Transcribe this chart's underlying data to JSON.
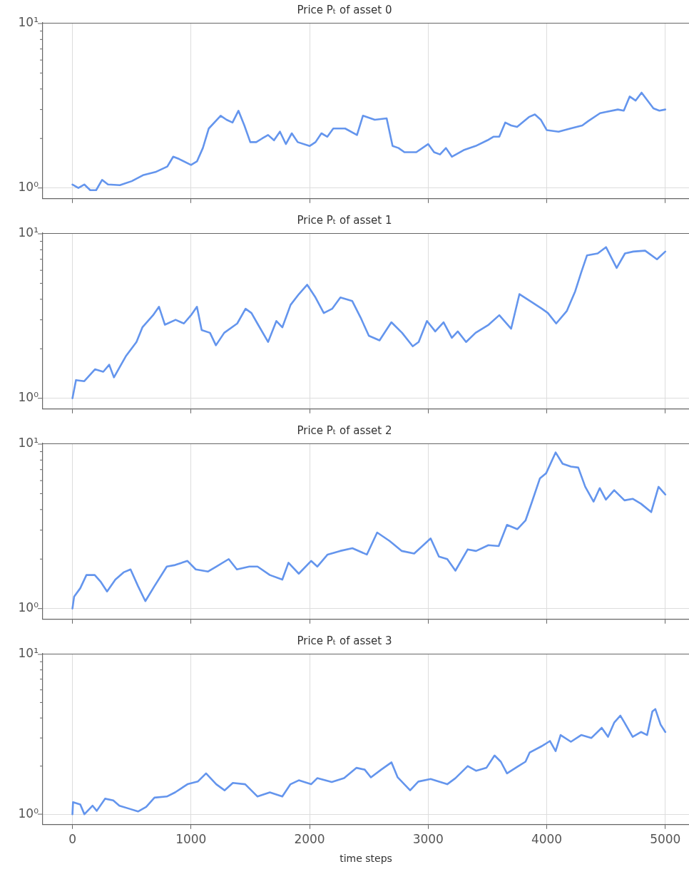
{
  "chart_data": [
    {
      "type": "line",
      "title": "Price Pₜ of asset 0",
      "xlim": [
        -250,
        5200
      ],
      "xticks": [
        0,
        1000,
        2000,
        3000,
        4000,
        5000
      ],
      "ylim": [
        0.86,
        10.1
      ],
      "yticks": [
        {
          "value": 1,
          "label": "10⁰"
        },
        {
          "value": 2,
          "label": null
        },
        {
          "value": 3,
          "label": null
        },
        {
          "value": 4,
          "label": null
        },
        {
          "value": 5,
          "label": null
        },
        {
          "value": 6,
          "label": null
        },
        {
          "value": 7,
          "label": null
        },
        {
          "value": 8,
          "label": null
        },
        {
          "value": 9,
          "label": null
        },
        {
          "value": 10,
          "label": "10¹"
        }
      ],
      "log": "y",
      "grid": true,
      "tick_labels": "y",
      "series": [
        {
          "color": "#6495ed",
          "x": [
            0,
            50,
            100,
            150,
            200,
            250,
            300,
            400,
            500,
            600,
            700,
            800,
            850,
            900,
            1000,
            1050,
            1100,
            1150,
            1250,
            1300,
            1350,
            1400,
            1450,
            1500,
            1550,
            1600,
            1650,
            1700,
            1750,
            1800,
            1850,
            1900,
            2000,
            2050,
            2100,
            2150,
            2200,
            2300,
            2400,
            2450,
            2550,
            2650,
            2700,
            2750,
            2800,
            2900,
            3000,
            3050,
            3100,
            3150,
            3200,
            3300,
            3400,
            3500,
            3550,
            3600,
            3650,
            3700,
            3750,
            3850,
            3900,
            3950,
            4000,
            4100,
            4200,
            4300,
            4350,
            4450,
            4500,
            4600,
            4650,
            4700,
            4750,
            4800,
            4900,
            4950,
            5000
          ],
          "values": [
            1.05,
            1.0,
            1.05,
            0.97,
            0.97,
            1.12,
            1.05,
            1.04,
            1.1,
            1.2,
            1.25,
            1.35,
            1.55,
            1.5,
            1.38,
            1.45,
            1.75,
            2.3,
            2.75,
            2.6,
            2.5,
            2.95,
            2.4,
            1.9,
            1.9,
            2.0,
            2.1,
            1.95,
            2.2,
            1.85,
            2.15,
            1.9,
            1.8,
            1.9,
            2.15,
            2.05,
            2.3,
            2.3,
            2.1,
            2.75,
            2.6,
            2.65,
            1.8,
            1.75,
            1.65,
            1.65,
            1.85,
            1.65,
            1.6,
            1.75,
            1.55,
            1.7,
            1.8,
            1.95,
            2.05,
            2.05,
            2.5,
            2.4,
            2.35,
            2.7,
            2.8,
            2.6,
            2.25,
            2.2,
            2.3,
            2.4,
            2.55,
            2.85,
            2.9,
            3.0,
            2.95,
            3.6,
            3.4,
            3.8,
            3.05,
            2.95,
            3.0
          ]
        }
      ]
    },
    {
      "type": "line",
      "title": "Price Pₜ of asset 1",
      "xlim": [
        -250,
        5200
      ],
      "xticks": [
        0,
        1000,
        2000,
        3000,
        4000,
        5000
      ],
      "ylim": [
        0.86,
        10.1
      ],
      "yticks": [
        {
          "value": 1,
          "label": "10⁰"
        },
        {
          "value": 2,
          "label": null
        },
        {
          "value": 3,
          "label": null
        },
        {
          "value": 4,
          "label": null
        },
        {
          "value": 5,
          "label": null
        },
        {
          "value": 6,
          "label": null
        },
        {
          "value": 7,
          "label": null
        },
        {
          "value": 8,
          "label": null
        },
        {
          "value": 9,
          "label": null
        },
        {
          "value": 10,
          "label": "10¹"
        }
      ],
      "log": "y",
      "grid": true,
      "tick_labels": "y",
      "series": [
        {
          "color": "#6495ed",
          "x": [
            0,
            30,
            100,
            190,
            260,
            310,
            350,
            450,
            540,
            590,
            680,
            730,
            780,
            870,
            940,
            1000,
            1050,
            1090,
            1160,
            1210,
            1280,
            1390,
            1460,
            1510,
            1560,
            1650,
            1720,
            1770,
            1840,
            1910,
            1980,
            2050,
            2120,
            2190,
            2260,
            2360,
            2430,
            2500,
            2590,
            2690,
            2780,
            2870,
            2920,
            2990,
            3060,
            3130,
            3200,
            3250,
            3320,
            3400,
            3510,
            3600,
            3700,
            3770,
            3870,
            3960,
            4010,
            4080,
            4170,
            4240,
            4290,
            4340,
            4430,
            4500,
            4590,
            4660,
            4730,
            4830,
            4930,
            5000
          ],
          "values": [
            1.0,
            1.29,
            1.27,
            1.5,
            1.45,
            1.6,
            1.34,
            1.8,
            2.2,
            2.7,
            3.2,
            3.6,
            2.8,
            3.0,
            2.85,
            3.2,
            3.6,
            2.6,
            2.5,
            2.1,
            2.5,
            2.85,
            3.5,
            3.3,
            2.85,
            2.2,
            2.95,
            2.7,
            3.7,
            4.3,
            4.9,
            4.1,
            3.3,
            3.5,
            4.1,
            3.9,
            3.1,
            2.4,
            2.25,
            2.9,
            2.5,
            2.07,
            2.2,
            2.95,
            2.55,
            2.9,
            2.33,
            2.55,
            2.2,
            2.5,
            2.8,
            3.2,
            2.65,
            4.3,
            3.86,
            3.5,
            3.3,
            2.85,
            3.4,
            4.47,
            5.8,
            7.4,
            7.6,
            8.3,
            6.2,
            7.6,
            7.8,
            7.9,
            7.0,
            7.8
          ]
        }
      ]
    },
    {
      "type": "line",
      "title": "Price Pₜ of asset 2",
      "xlim": [
        -250,
        5200
      ],
      "xticks": [
        0,
        1000,
        2000,
        3000,
        4000,
        5000
      ],
      "ylim": [
        0.86,
        10.1
      ],
      "yticks": [
        {
          "value": 1,
          "label": "10⁰"
        },
        {
          "value": 2,
          "label": null
        },
        {
          "value": 3,
          "label": null
        },
        {
          "value": 4,
          "label": null
        },
        {
          "value": 5,
          "label": null
        },
        {
          "value": 6,
          "label": null
        },
        {
          "value": 7,
          "label": null
        },
        {
          "value": 8,
          "label": null
        },
        {
          "value": 9,
          "label": null
        },
        {
          "value": 10,
          "label": "10¹"
        }
      ],
      "log": "y",
      "grid": true,
      "tick_labels": "y",
      "series": [
        {
          "color": "#6495ed",
          "x": [
            0,
            14,
            66,
            118,
            188,
            240,
            292,
            362,
            431,
            490,
            553,
            615,
            692,
            796,
            866,
            970,
            1040,
            1144,
            1213,
            1318,
            1387,
            1492,
            1561,
            1665,
            1770,
            1822,
            1909,
            2013,
            2065,
            2152,
            2257,
            2361,
            2483,
            2570,
            2674,
            2778,
            2882,
            3021,
            3091,
            3161,
            3230,
            3334,
            3404,
            3508,
            3595,
            3665,
            3752,
            3821,
            3873,
            3943,
            3995,
            4075,
            4134,
            4204,
            4266,
            4325,
            4395,
            4447,
            4499,
            4569,
            4656,
            4725,
            4795,
            4881,
            4943,
            5000
          ],
          "values": [
            1.0,
            1.18,
            1.33,
            1.6,
            1.6,
            1.45,
            1.27,
            1.5,
            1.66,
            1.73,
            1.37,
            1.11,
            1.37,
            1.8,
            1.84,
            1.95,
            1.73,
            1.68,
            1.8,
            2.0,
            1.73,
            1.8,
            1.8,
            1.6,
            1.5,
            1.9,
            1.63,
            1.95,
            1.8,
            2.13,
            2.24,
            2.33,
            2.13,
            2.9,
            2.58,
            2.24,
            2.16,
            2.67,
            2.07,
            2.0,
            1.7,
            2.29,
            2.24,
            2.43,
            2.4,
            3.23,
            3.04,
            3.43,
            4.4,
            6.2,
            6.65,
            8.9,
            7.6,
            7.3,
            7.2,
            5.5,
            4.47,
            5.4,
            4.6,
            5.25,
            4.55,
            4.65,
            4.34,
            3.86,
            5.5,
            4.94
          ]
        }
      ]
    },
    {
      "type": "line",
      "title": "Price Pₜ of asset 3",
      "xlabel": "time steps",
      "xlim": [
        -250,
        5200
      ],
      "xticks": [
        0,
        1000,
        2000,
        3000,
        4000,
        5000
      ],
      "ylim": [
        0.86,
        10.1
      ],
      "yticks": [
        {
          "value": 1,
          "label": "10⁰"
        },
        {
          "value": 2,
          "label": null
        },
        {
          "value": 3,
          "label": null
        },
        {
          "value": 4,
          "label": null
        },
        {
          "value": 5,
          "label": null
        },
        {
          "value": 6,
          "label": null
        },
        {
          "value": 7,
          "label": null
        },
        {
          "value": 8,
          "label": null
        },
        {
          "value": 9,
          "label": null
        },
        {
          "value": 10,
          "label": "10¹"
        }
      ],
      "log": "y",
      "grid": true,
      "series": [
        {
          "color": "#6495ed",
          "x": [
            0,
            5,
            66,
            101,
            170,
            205,
            275,
            344,
            396,
            483,
            553,
            622,
            692,
            796,
            866,
            970,
            1057,
            1127,
            1213,
            1283,
            1353,
            1457,
            1561,
            1665,
            1770,
            1839,
            1909,
            2013,
            2065,
            2187,
            2291,
            2396,
            2465,
            2517,
            2604,
            2691,
            2743,
            2848,
            2917,
            3021,
            3161,
            3230,
            3334,
            3404,
            3491,
            3560,
            3613,
            3665,
            3752,
            3821,
            3856,
            3960,
            4027,
            4075,
            4117,
            4204,
            4291,
            4377,
            4464,
            4517,
            4569,
            4621,
            4656,
            4725,
            4795,
            4847,
            4891,
            4916,
            4961,
            5000
          ],
          "values": [
            1.0,
            1.19,
            1.15,
            1.0,
            1.13,
            1.05,
            1.25,
            1.22,
            1.13,
            1.08,
            1.04,
            1.11,
            1.27,
            1.29,
            1.37,
            1.54,
            1.6,
            1.8,
            1.54,
            1.41,
            1.57,
            1.54,
            1.29,
            1.37,
            1.29,
            1.54,
            1.63,
            1.54,
            1.68,
            1.59,
            1.68,
            1.95,
            1.9,
            1.7,
            1.9,
            2.11,
            1.7,
            1.41,
            1.6,
            1.66,
            1.54,
            1.68,
            2.0,
            1.87,
            1.95,
            2.33,
            2.13,
            1.8,
            1.98,
            2.13,
            2.43,
            2.67,
            2.87,
            2.48,
            3.13,
            2.84,
            3.13,
            3.0,
            3.47,
            3.05,
            3.74,
            4.14,
            3.74,
            3.05,
            3.27,
            3.13,
            4.39,
            4.55,
            3.63,
            3.27
          ]
        }
      ]
    }
  ]
}
